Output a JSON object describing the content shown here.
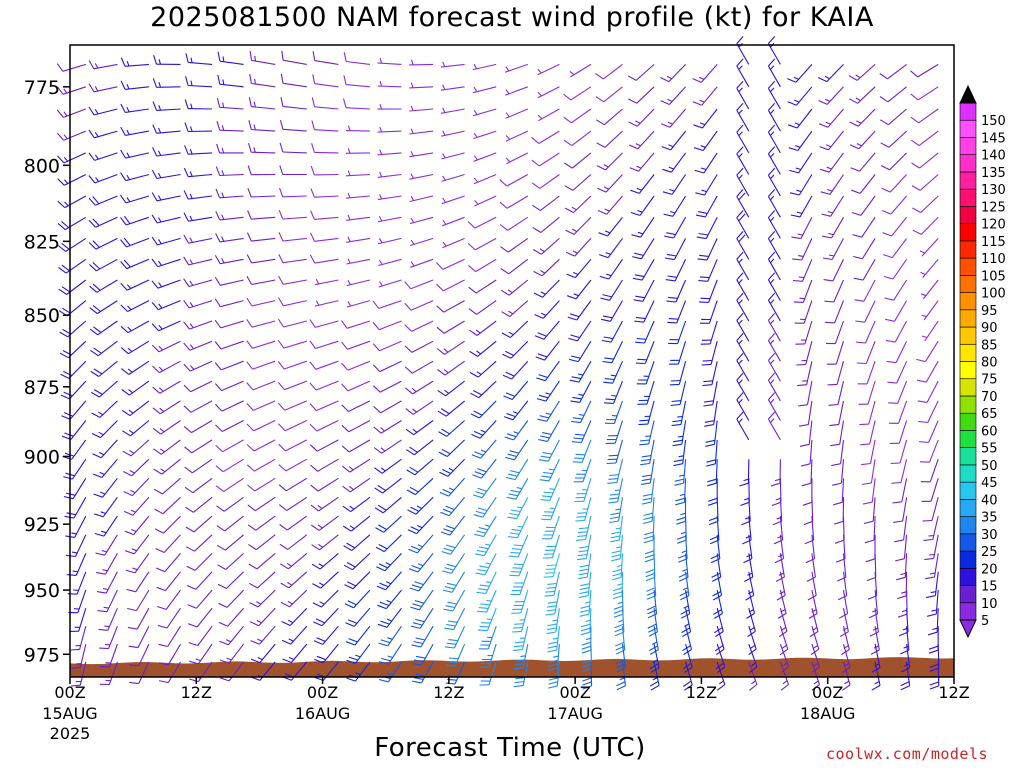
{
  "chart_data": {
    "type": "wind-barb-profile",
    "title": "2025081500 NAM forecast wind profile (kt) for KAIA",
    "xlabel": "Forecast Time (UTC)",
    "ylabel": "",
    "x_ticks": [
      {
        "hour": 0,
        "label": "00Z",
        "date": "15AUG",
        "year": "2025"
      },
      {
        "hour": 12,
        "label": "12Z",
        "date": "",
        "year": ""
      },
      {
        "hour": 24,
        "label": "00Z",
        "date": "16AUG",
        "year": ""
      },
      {
        "hour": 36,
        "label": "12Z",
        "date": "",
        "year": ""
      },
      {
        "hour": 48,
        "label": "00Z",
        "date": "17AUG",
        "year": ""
      },
      {
        "hour": 60,
        "label": "12Z",
        "date": "",
        "year": ""
      },
      {
        "hour": 72,
        "label": "00Z",
        "date": "18AUG",
        "year": ""
      },
      {
        "hour": 84,
        "label": "12Z",
        "date": "",
        "year": ""
      }
    ],
    "xlim": [
      0,
      84
    ],
    "y_ticks": [
      775,
      800,
      825,
      850,
      875,
      900,
      925,
      950,
      975
    ],
    "ylim_hpa": [
      762,
      984
    ],
    "y_scale": "log-pressure",
    "colorbar": {
      "levels": [
        5,
        10,
        15,
        20,
        25,
        30,
        35,
        40,
        45,
        50,
        55,
        60,
        65,
        70,
        75,
        80,
        85,
        90,
        95,
        100,
        105,
        110,
        115,
        120,
        125,
        130,
        135,
        140,
        145,
        150
      ],
      "colors": [
        "#8a2be2",
        "#6a1fd0",
        "#3010e0",
        "#0a2ae0",
        "#1458e8",
        "#1f86f0",
        "#28a8f2",
        "#28c8ee",
        "#1fdcc8",
        "#18e09a",
        "#20e040",
        "#40dc10",
        "#90e000",
        "#d8e400",
        "#ffff00",
        "#ffe600",
        "#ffc800",
        "#ffaa00",
        "#ff9000",
        "#ff7000",
        "#ff5000",
        "#ff2800",
        "#ff0000",
        "#f00040",
        "#ff1070",
        "#ff20a0",
        "#ff30c8",
        "#ff40e6",
        "#ff50ff",
        "#e030ff"
      ]
    },
    "terrain_color": "#a0522d",
    "barb_grid": {
      "hour_step": 3,
      "pressure_step": 7
    },
    "annotations": [
      "coolwx.com/models"
    ]
  }
}
